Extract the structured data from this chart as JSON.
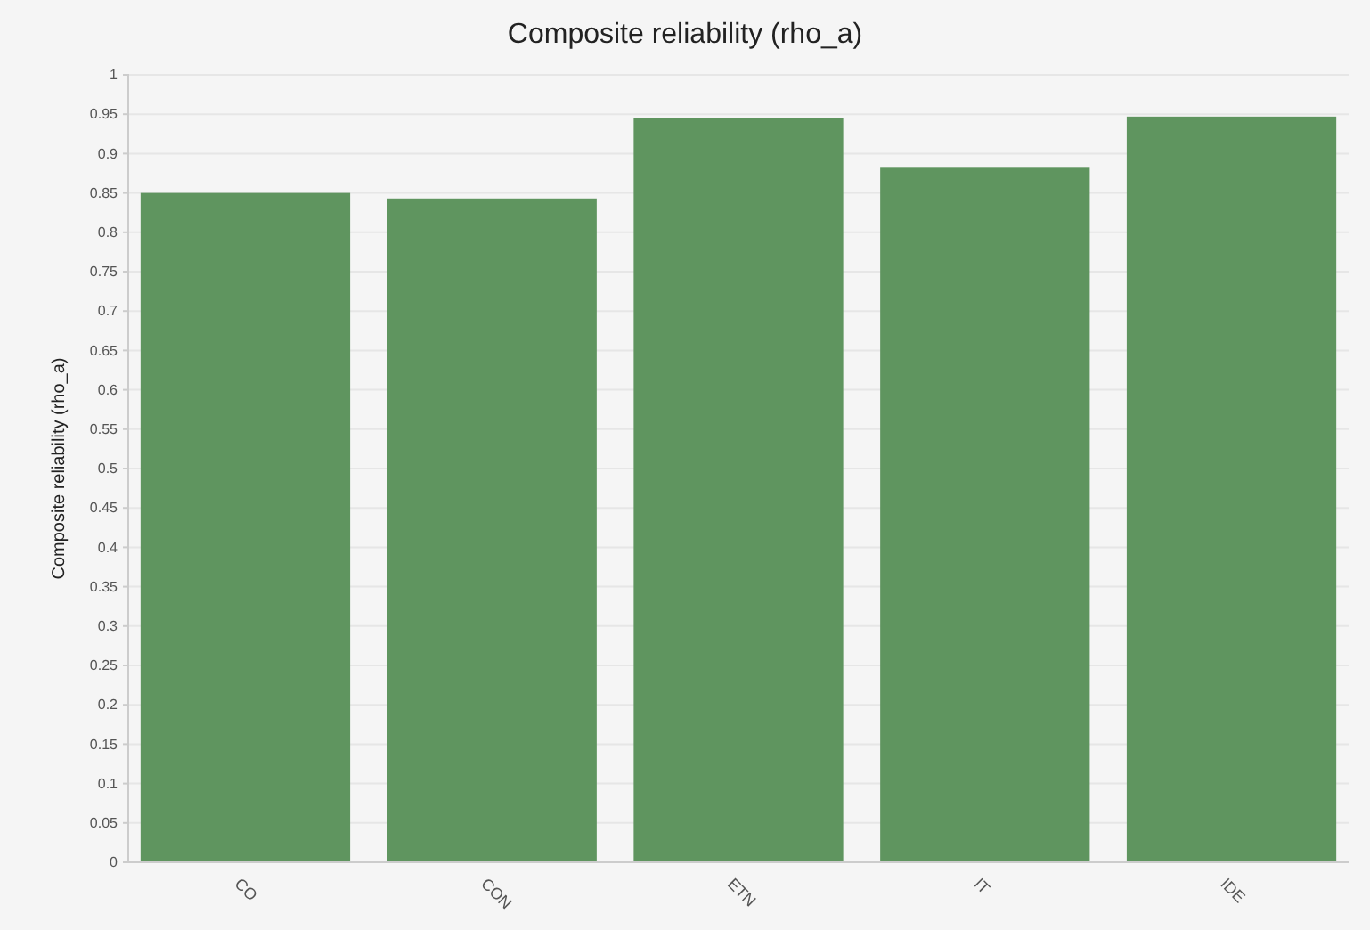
{
  "chart_data": {
    "type": "bar",
    "title": "Composite reliability (rho_a)",
    "ylabel": "Composite reliability (rho_a)",
    "categories": [
      "CO",
      "CON",
      "ETN",
      "IT",
      "IDE"
    ],
    "values": [
      0.85,
      0.843,
      0.945,
      0.882,
      0.947
    ],
    "color": "#5f955f",
    "ylim": [
      0,
      1
    ],
    "yticks": [
      0,
      0.05,
      0.1,
      0.15,
      0.2,
      0.25,
      0.3,
      0.35,
      0.4,
      0.45,
      0.5,
      0.55,
      0.6,
      0.65,
      0.7,
      0.75,
      0.8,
      0.85,
      0.9,
      0.95,
      1
    ],
    "grid": "y"
  }
}
